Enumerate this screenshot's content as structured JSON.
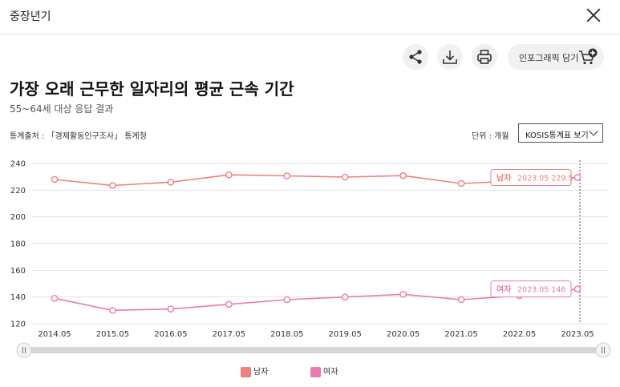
{
  "header": {
    "title": "중장년기"
  },
  "toolbar": {
    "infographic_label": "인포그래픽 담기"
  },
  "chart_info": {
    "source_text": "통계출처 : 「경제활동인구조사」 통계청",
    "unit_text": "단위 : 개월",
    "kosis_label": "KOSIS통계표 보기"
  },
  "colors": {
    "male": "#f07f7f",
    "female": "#e97ab0"
  },
  "chart_data": {
    "type": "line",
    "title": "가장 오래 근무한 일자리의 평균 근속 기간",
    "subtitle": "55~64세 대상 응답 결과",
    "x": [
      "2014.05",
      "2015.05",
      "2016.05",
      "2017.05",
      "2018.05",
      "2019.05",
      "2020.05",
      "2021.05",
      "2022.05",
      "2023.05"
    ],
    "ylim": [
      120,
      240
    ],
    "yticks": [
      120,
      140,
      160,
      180,
      200,
      220,
      240
    ],
    "grid": true,
    "legend_position": "bottom",
    "series": [
      {
        "name": "남자",
        "values": [
          228,
          223.5,
          226,
          231.5,
          230.7,
          229.8,
          230.9,
          225,
          227,
          229.5
        ]
      },
      {
        "name": "여자",
        "values": [
          139,
          130,
          131,
          134.5,
          138,
          140,
          142,
          138,
          141,
          146
        ]
      }
    ],
    "annotations": [
      {
        "series": "남자",
        "label": "남자",
        "text": "2023.05 229.5"
      },
      {
        "series": "여자",
        "label": "여자",
        "text": "2023.05 146"
      }
    ]
  }
}
